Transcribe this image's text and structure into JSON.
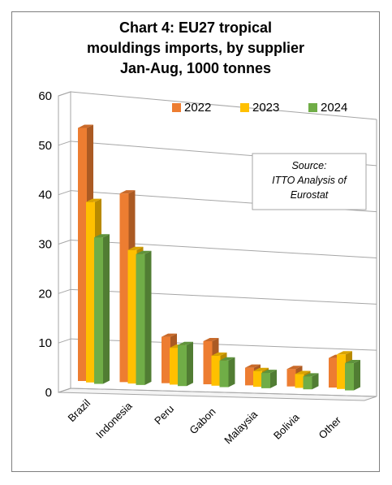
{
  "chart_data": {
    "type": "bar",
    "title_lines": [
      "Chart 4: EU27 tropical",
      "mouldings imports, by supplier",
      "Jan-Aug, 1000 tonnes"
    ],
    "categories": [
      "Brazil",
      "Indonesia",
      "Peru",
      "Gabon",
      "Malaysia",
      "Bolivia",
      "Other"
    ],
    "series": [
      {
        "name": "2022",
        "color": "#ED7D31",
        "values": [
          52.5,
          39.5,
          9.8,
          9.2,
          3.8,
          3.8,
          6.5
        ]
      },
      {
        "name": "2023",
        "color": "#FFC000",
        "values": [
          37.5,
          28.0,
          7.8,
          6.4,
          3.4,
          3.0,
          7.6
        ]
      },
      {
        "name": "2024",
        "color": "#70AD47",
        "values": [
          30.5,
          27.5,
          8.7,
          5.7,
          3.3,
          2.8,
          6.0
        ]
      }
    ],
    "ylim": [
      0,
      60
    ],
    "yticks": [
      0,
      10,
      20,
      30,
      40,
      50,
      60
    ],
    "grid": true,
    "legend": "top-right",
    "source_lines": [
      "Source:",
      "ITTO Analysis of",
      "Eurostat"
    ]
  }
}
